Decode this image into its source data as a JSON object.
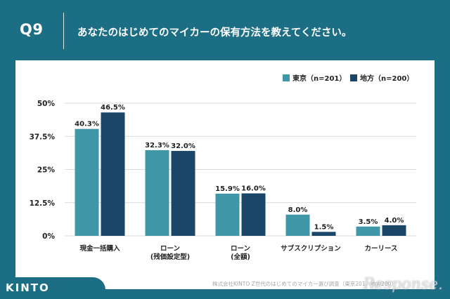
{
  "header": {
    "question_no": "Q9",
    "question_text": "あなたのはじめてのマイカーの保有方法を教えてください。"
  },
  "colors": {
    "background": "#1c6e85",
    "tokyo": "#3f97a8",
    "chiho": "#1b4668",
    "grid": "#d9d9d9",
    "text": "#222222"
  },
  "chart_data": {
    "type": "bar",
    "categories": [
      [
        "現金一括購入"
      ],
      [
        "ローン",
        "(残価設定型)"
      ],
      [
        "ローン",
        "(全額)"
      ],
      [
        "サブスクリプション"
      ],
      [
        "カーリース"
      ]
    ],
    "series": [
      {
        "name": "東京（n=201）",
        "values": [
          40.3,
          32.3,
          15.9,
          8.0,
          3.5
        ],
        "labels": [
          "40.3%",
          "32.3%",
          "15.9%",
          "8.0%",
          "3.5%"
        ]
      },
      {
        "name": "地方（n=200）",
        "values": [
          46.5,
          32.0,
          16.0,
          1.5,
          4.0
        ],
        "labels": [
          "46.5%",
          "32.0%",
          "16.0%",
          "1.5%",
          "4.0%"
        ]
      }
    ],
    "ylim": [
      0,
      50
    ],
    "yticks": [
      0,
      12.5,
      25,
      37.5,
      50
    ],
    "ytick_labels": [
      "0%",
      "12.5%",
      "25%",
      "37.5%",
      "50%"
    ],
    "grid": true,
    "legend_position": "top-right"
  },
  "footer": {
    "logo": "KINTO",
    "source": "株式会社KINTO Z世代のはじめてのマイカー選び調査（東京201、地方200）",
    "watermark": "Response."
  }
}
